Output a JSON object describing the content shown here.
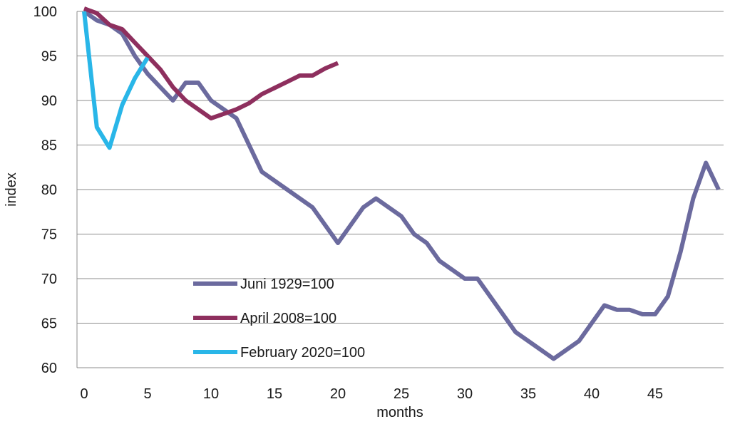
{
  "chart_data": {
    "type": "line",
    "title": "",
    "xlabel": "months",
    "ylabel": "index",
    "xlim": [
      0,
      50
    ],
    "ylim": [
      60,
      100
    ],
    "x_ticks": [
      0,
      5,
      10,
      15,
      20,
      25,
      30,
      35,
      40,
      45
    ],
    "y_ticks": [
      60,
      65,
      70,
      75,
      80,
      85,
      90,
      95,
      100
    ],
    "grid": "horizontal",
    "legend_position": "lower-left inside plot",
    "series": [
      {
        "name": "Juni 1929=100",
        "color": "#6b6a9e",
        "x": [
          0,
          1,
          2,
          3,
          4,
          5,
          6,
          7,
          8,
          9,
          10,
          11,
          12,
          13,
          14,
          15,
          16,
          17,
          18,
          19,
          20,
          21,
          22,
          23,
          24,
          25,
          26,
          27,
          28,
          29,
          30,
          31,
          32,
          33,
          34,
          35,
          36,
          37,
          38,
          39,
          40,
          41,
          42,
          43,
          44,
          45,
          46,
          47,
          48,
          49,
          50
        ],
        "y": [
          100,
          99,
          98.5,
          97.5,
          95,
          93,
          91.5,
          90,
          92,
          92,
          90,
          89,
          88,
          85,
          82,
          81,
          80,
          79,
          78,
          76,
          74,
          76,
          78,
          79,
          78,
          77,
          75,
          74,
          72,
          71,
          70,
          70,
          68,
          66,
          64,
          63,
          62,
          61,
          62,
          63,
          65,
          67,
          66.5,
          66.5,
          66,
          66,
          68,
          73,
          79,
          83,
          80
        ]
      },
      {
        "name": "April 2008=100",
        "color": "#8e2f5e",
        "x": [
          0,
          1,
          2,
          3,
          4,
          5,
          6,
          7,
          8,
          9,
          10,
          11,
          12,
          13,
          14,
          15,
          16,
          17,
          18,
          19,
          20
        ],
        "y": [
          100.5,
          99.8,
          98.5,
          98,
          96.5,
          95,
          93.5,
          91.5,
          90,
          89,
          88,
          88.5,
          89,
          89.7,
          90.7,
          91.4,
          92.1,
          92.8,
          92.8,
          93.6,
          94.2
        ]
      },
      {
        "name": "February 2020=100",
        "color": "#29b6e8",
        "x": [
          0,
          1,
          2,
          3,
          4,
          5
        ],
        "y": [
          100,
          87,
          84.7,
          89.5,
          92.5,
          94.8
        ]
      }
    ]
  }
}
